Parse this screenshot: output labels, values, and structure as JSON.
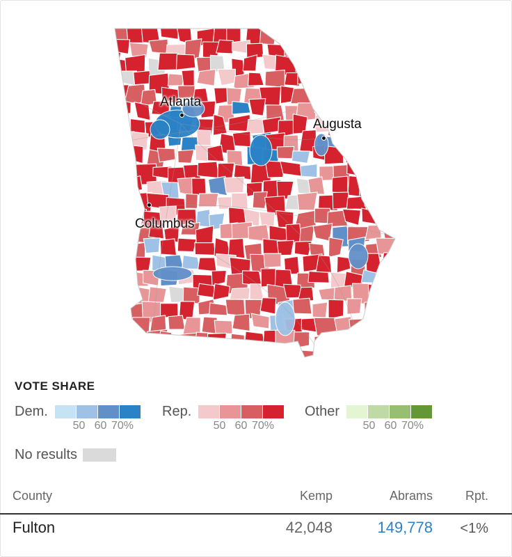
{
  "map": {
    "colors": {
      "dem": [
        "#c6e3f6",
        "#9fc1e6",
        "#6190c9",
        "#2b82c6"
      ],
      "rep": [
        "#f4c9cc",
        "#e89597",
        "#d75f61",
        "#d4232f"
      ],
      "other": [
        "#e3f5d3",
        "#bfdaa4",
        "#97bf72",
        "#649837"
      ],
      "no_results": "#dadada",
      "border": "#ffffff",
      "road": "#9a9a9a"
    },
    "cities": [
      {
        "name": "Atlanta"
      },
      {
        "name": "Augusta"
      },
      {
        "name": "Columbus"
      }
    ]
  },
  "legend": {
    "title": "VOTE SHARE",
    "groups": [
      {
        "name": "Dem.",
        "key": "dem",
        "ticks": [
          "50",
          "60",
          "70%"
        ]
      },
      {
        "name": "Rep.",
        "key": "rep",
        "ticks": [
          "50",
          "60",
          "70%"
        ]
      },
      {
        "name": "Other",
        "key": "other",
        "ticks": [
          "50",
          "60",
          "70%"
        ]
      }
    ],
    "no_results_label": "No results"
  },
  "table": {
    "headers": {
      "county": "County",
      "kemp": "Kemp",
      "abrams": "Abrams",
      "rpt": "Rpt."
    },
    "rows": [
      {
        "county": "Fulton",
        "kemp": "42,048",
        "abrams": "149,778",
        "rpt": "<1%",
        "winner_color": "#2b82c6"
      }
    ]
  }
}
